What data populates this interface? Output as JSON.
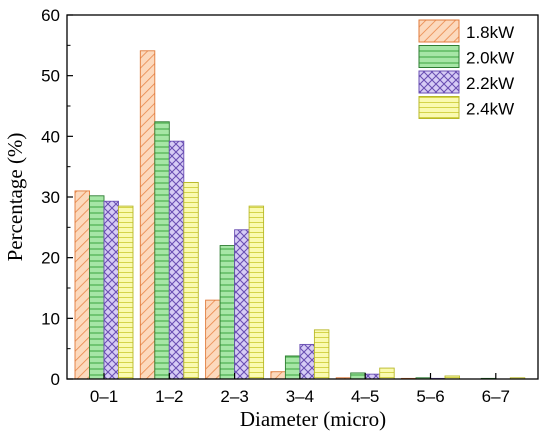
{
  "chart_data": {
    "type": "bar",
    "title": "",
    "xlabel": "Diameter (micro)",
    "ylabel": "Percentage (%)",
    "ylim": [
      0,
      60
    ],
    "yticks": [
      0,
      10,
      20,
      30,
      40,
      50,
      60
    ],
    "grid": false,
    "legend_position": "top-right",
    "categories": [
      "0–1",
      "1–2",
      "2–3",
      "3–4",
      "4–5",
      "5–6",
      "6–7"
    ],
    "series": [
      {
        "name": "1.8kW",
        "color": "#f8c8a4",
        "stroke": "#e07a3a",
        "pattern": "diagonal-hatch",
        "values": [
          31.0,
          54.1,
          13.0,
          1.2,
          0.2,
          0.1,
          0.0
        ]
      },
      {
        "name": "2.0kW",
        "color": "#9fe09f",
        "stroke": "#2e7d32",
        "pattern": "horizontal-lines",
        "values": [
          30.2,
          42.4,
          22.0,
          3.8,
          1.0,
          0.2,
          0.1
        ]
      },
      {
        "name": "2.2kW",
        "color": "#c7b7f0",
        "stroke": "#6a4fb3",
        "pattern": "crosshatch",
        "values": [
          29.3,
          39.2,
          24.6,
          5.7,
          0.8,
          0.1,
          0.0
        ]
      },
      {
        "name": "2.4kW",
        "color": "#f7f79a",
        "stroke": "#b8b82a",
        "pattern": "horizontal-lines",
        "values": [
          28.5,
          32.4,
          28.5,
          8.1,
          1.8,
          0.5,
          0.2
        ]
      }
    ]
  }
}
